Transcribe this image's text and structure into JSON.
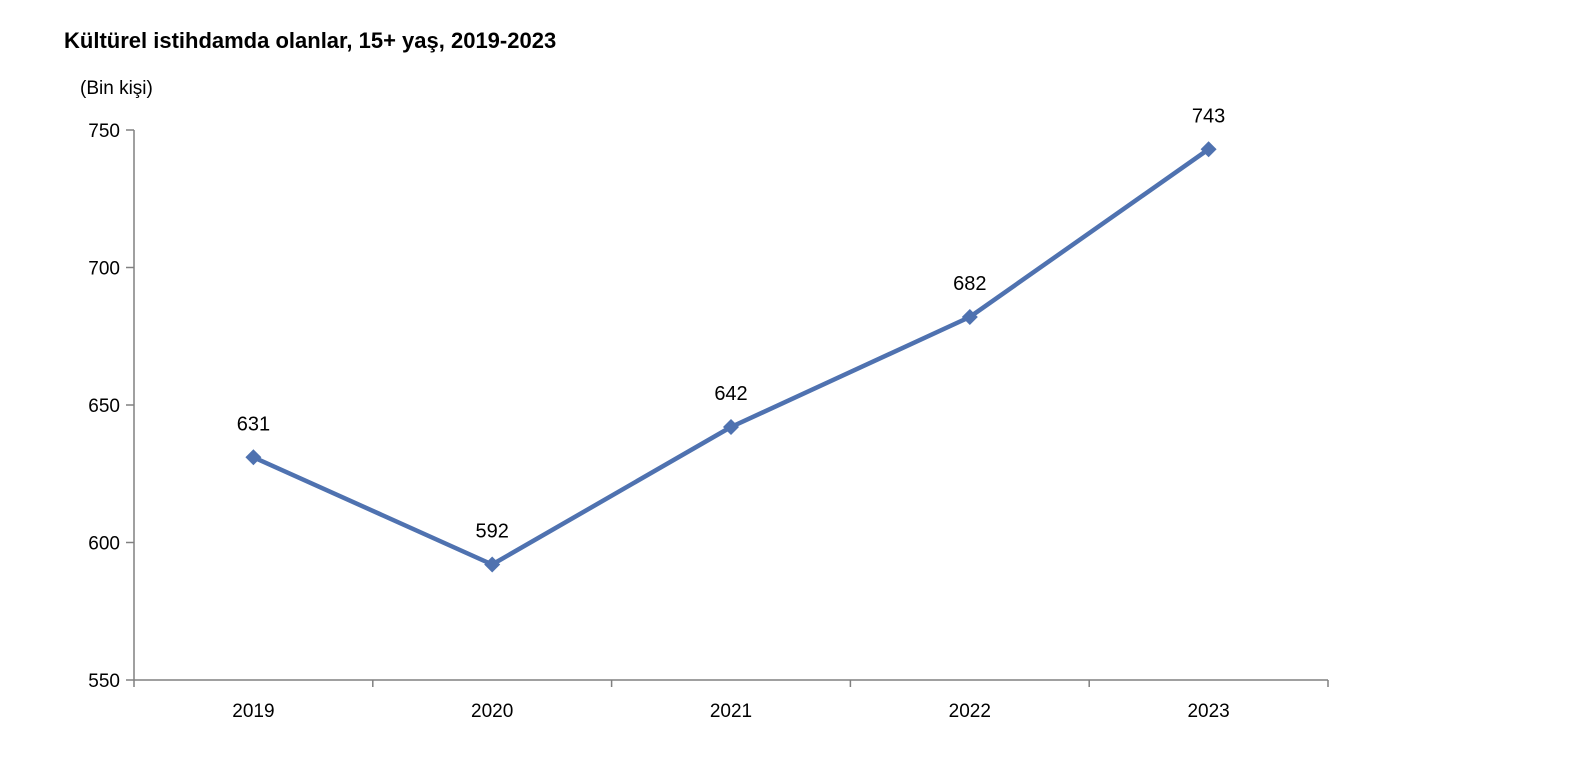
{
  "chart_data": {
    "type": "line",
    "title": "Kültürel istihdamda olanlar, 15+ yaş, 2019-2023",
    "ylabel": "(Bin kişi)",
    "xlabel": "",
    "categories": [
      "2019",
      "2020",
      "2021",
      "2022",
      "2023"
    ],
    "series": [
      {
        "values": [
          631,
          592,
          642,
          682,
          743
        ],
        "color": "#4f72b0",
        "marker": "diamond"
      }
    ],
    "ylim": [
      550,
      750
    ],
    "yticks": [
      550,
      600,
      650,
      700,
      750
    ],
    "grid": false,
    "legend": "none",
    "data_labels": true,
    "axis_color": "#808080"
  }
}
